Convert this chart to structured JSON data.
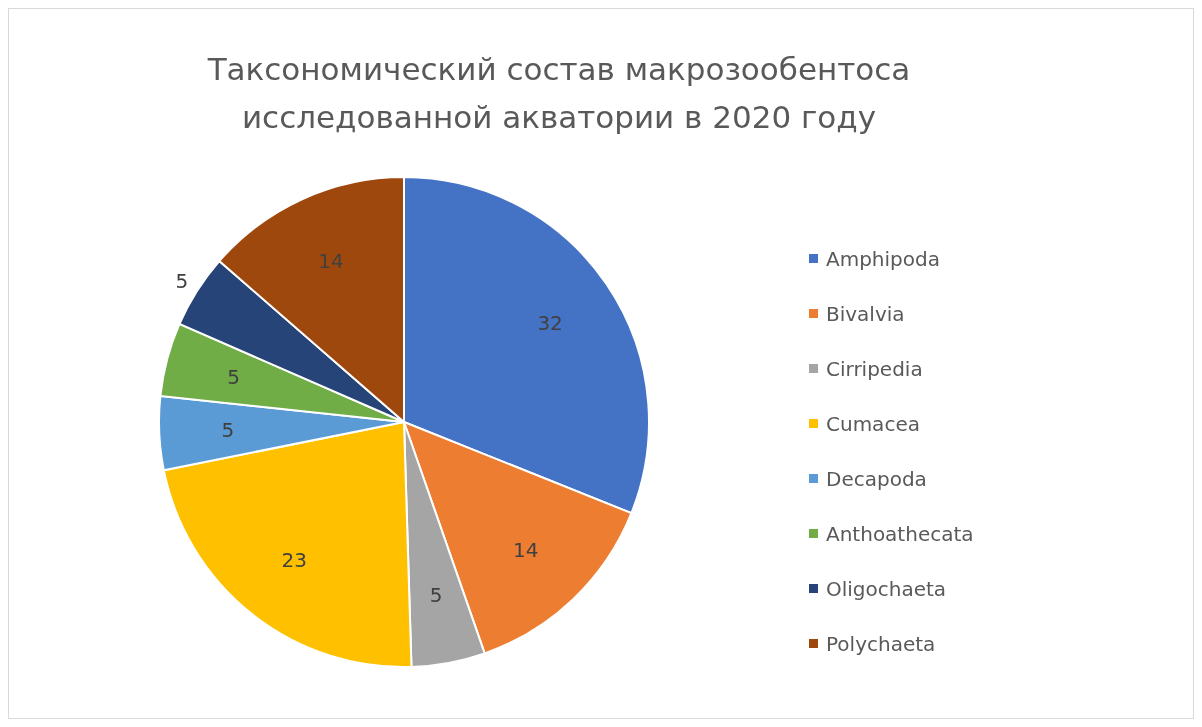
{
  "chart_data": {
    "type": "pie",
    "title": "Таксономический состав макрозообентоса исследованной акватории в 2020 году",
    "categories": [
      "Amphipoda",
      "Bivalvia",
      "Cirripedia",
      "Cumacea",
      "Decapoda",
      "Anthoathecata",
      "Oligochaeta",
      "Polychaeta"
    ],
    "values": [
      32,
      14,
      5,
      23,
      5,
      5,
      5,
      14
    ],
    "colors": [
      "#4472c4",
      "#ed7d31",
      "#a5a5a5",
      "#ffc000",
      "#5b9bd5",
      "#70ad47",
      "#264478",
      "#9e480e"
    ],
    "data_labels": true,
    "legend": "right"
  }
}
